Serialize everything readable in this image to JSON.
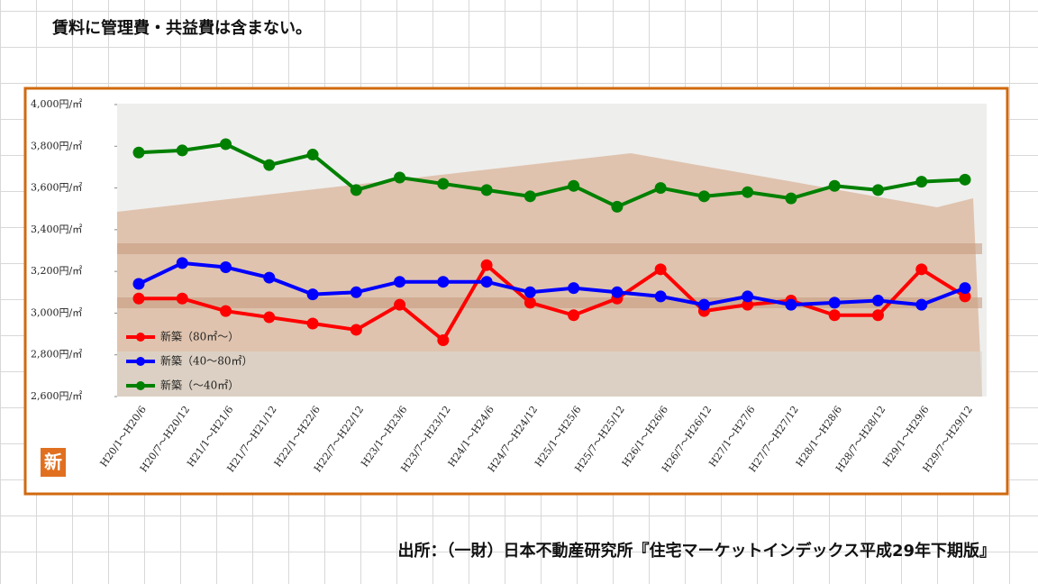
{
  "note": "賃料に管理費・共益費は含まない。",
  "badge": "新",
  "source": "出所：（一財）日本不動産研究所『住宅マーケットインデックス平成29年下期版』",
  "chart_data": {
    "type": "line",
    "categories": [
      "H20/1～H20/6",
      "H20/7～H20/12",
      "H21/1～H21/6",
      "H21/7～H21/12",
      "H22/1～H22/6",
      "H22/7～H22/12",
      "H23/1～H23/6",
      "H23/7～H23/12",
      "H24/1～H24/6",
      "H24/7～H24/12",
      "H25/1～H25/6",
      "H25/7～H25/12",
      "H26/1～H26/6",
      "H26/7～H26/12",
      "H27/1～H27/6",
      "H27/7～H27/12",
      "H28/1～H28/6",
      "H28/7～H28/12",
      "H29/1～H29/6",
      "H29/7～H29/12"
    ],
    "series": [
      {
        "name": "新築（80㎡～）",
        "color": "#ff0000",
        "values": [
          3070,
          3070,
          3010,
          2980,
          2950,
          2920,
          3040,
          2870,
          3230,
          3050,
          2990,
          3070,
          3210,
          3010,
          3040,
          3060,
          2990,
          2990,
          3210,
          3080
        ]
      },
      {
        "name": "新築（40～80㎡）",
        "color": "#0000ff",
        "values": [
          3140,
          3240,
          3220,
          3170,
          3090,
          3100,
          3150,
          3150,
          3150,
          3100,
          3120,
          3100,
          3080,
          3040,
          3080,
          3040,
          3050,
          3060,
          3040,
          3120
        ]
      },
      {
        "name": "新築（～40㎡）",
        "color": "#008000",
        "values": [
          3770,
          3780,
          3810,
          3710,
          3760,
          3590,
          3650,
          3620,
          3590,
          3560,
          3610,
          3510,
          3600,
          3560,
          3580,
          3550,
          3610,
          3590,
          3630,
          3640
        ]
      }
    ],
    "ylim": [
      2600,
      4000
    ],
    "yticks": [
      {
        "value": 2600,
        "label": "2,600円/㎡"
      },
      {
        "value": 2800,
        "label": "2,800円/㎡"
      },
      {
        "value": 3000,
        "label": "3,000円/㎡"
      },
      {
        "value": 3200,
        "label": "3,200円/㎡"
      },
      {
        "value": 3400,
        "label": "3,400円/㎡"
      },
      {
        "value": 3600,
        "label": "3,600円/㎡"
      },
      {
        "value": 3800,
        "label": "3,800円/㎡"
      },
      {
        "value": 4000,
        "label": "4,000円/㎡"
      }
    ],
    "legend": "lower left"
  }
}
